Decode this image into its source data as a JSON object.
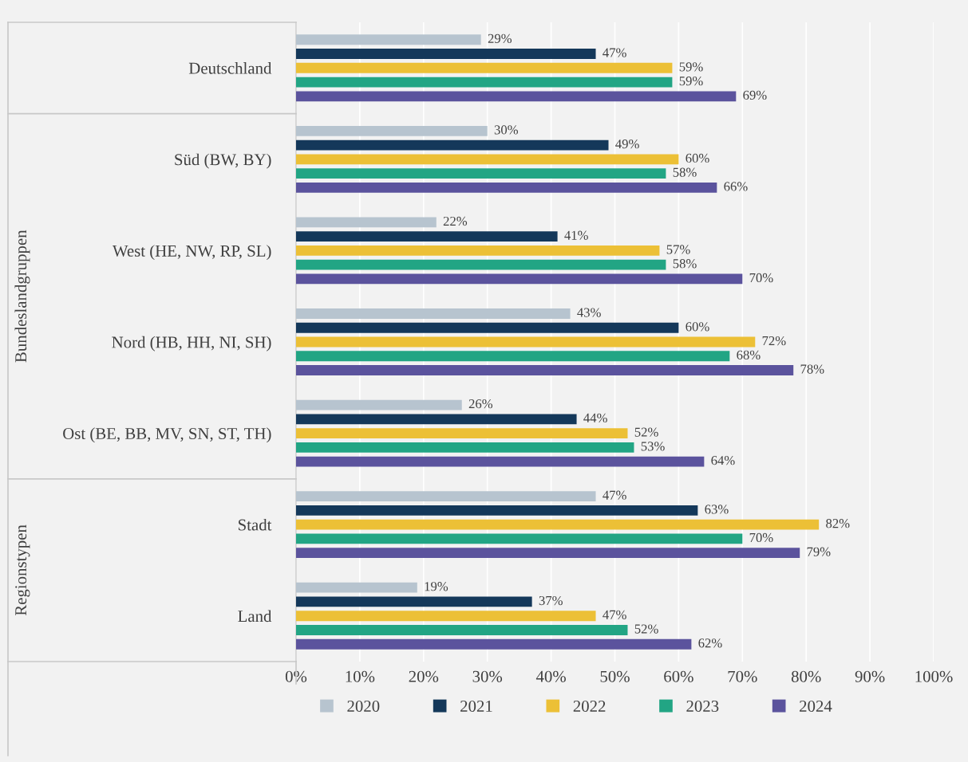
{
  "chart_data": {
    "type": "bar",
    "orientation": "horizontal",
    "categories": [
      "Deutschland",
      "Süd (BW, BY)",
      "West (HE, NW, RP, SL)",
      "Nord (HB, HH, NI, SH)",
      "Ost (BE, BB, MV, SN, ST, TH)",
      "Stadt",
      "Land"
    ],
    "series": [
      {
        "name": "2020",
        "color": "#b7c4cf",
        "values": [
          29,
          30,
          22,
          43,
          26,
          47,
          19
        ],
        "value_labels": [
          "29%",
          "30%",
          "22%",
          "43%",
          "26%",
          "47%",
          "19%"
        ]
      },
      {
        "name": "2021",
        "color": "#14385a",
        "values": [
          47,
          49,
          41,
          60,
          44,
          63,
          37
        ],
        "value_labels": [
          "47%",
          "49%",
          "41%",
          "60%",
          "44%",
          "63%",
          "37%"
        ]
      },
      {
        "name": "2022",
        "color": "#ecc036",
        "values": [
          59,
          60,
          57,
          72,
          52,
          82,
          47
        ],
        "value_labels": [
          "59%",
          "60%",
          "57%",
          "72%",
          "52%",
          "82%",
          "47%"
        ]
      },
      {
        "name": "2023",
        "color": "#22a584",
        "values": [
          59,
          58,
          58,
          68,
          53,
          70,
          52
        ],
        "value_labels": [
          "59%",
          "58%",
          "58%",
          "68%",
          "53%",
          "70%",
          "52%"
        ]
      },
      {
        "name": "2024",
        "color": "#5b539d",
        "values": [
          69,
          66,
          70,
          78,
          64,
          79,
          62
        ],
        "value_labels": [
          "69%",
          "66%",
          "70%",
          "78%",
          "64%",
          "79%",
          "62%"
        ]
      }
    ],
    "xlim": [
      0,
      100
    ],
    "xticks": [
      {
        "value": 0,
        "label": "0%"
      },
      {
        "value": 10,
        "label": "10%"
      },
      {
        "value": 20,
        "label": "20%"
      },
      {
        "value": 30,
        "label": "30%"
      },
      {
        "value": 40,
        "label": "40%"
      },
      {
        "value": 50,
        "label": "50%"
      },
      {
        "value": 60,
        "label": "60%"
      },
      {
        "value": 70,
        "label": "70%"
      },
      {
        "value": 80,
        "label": "80%"
      },
      {
        "value": 90,
        "label": "90%"
      },
      {
        "value": 100,
        "label": "100%"
      }
    ],
    "grid": "x",
    "legend": "bottom",
    "annotations": [
      "Bundeslandgruppen",
      "Regionstypen"
    ]
  }
}
